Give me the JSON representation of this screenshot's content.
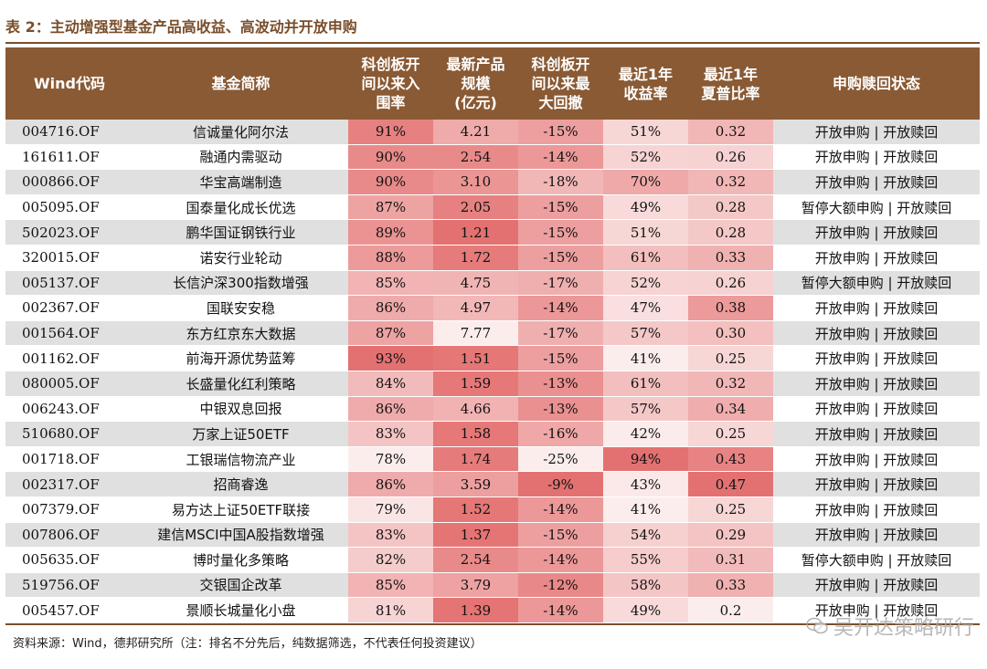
{
  "caption": "表 2：主动增强型基金产品高收益、高波动并开放申购",
  "headers": [
    [
      "Wind代码"
    ],
    [
      "基金简称"
    ],
    [
      "科创板开",
      "间以来入",
      "围率"
    ],
    [
      "最新产品",
      "规模",
      "(亿元)"
    ],
    [
      "科创板开",
      "间以来最",
      "大回撤"
    ],
    [
      "最近1年",
      "收益率"
    ],
    [
      "最近1年",
      "夏普比率"
    ],
    [
      "申购赎回状态"
    ]
  ],
  "colors": {
    "header_bg": "#8a5a34",
    "accent": "#7a4e2a",
    "heat_low": "#fdf4f4",
    "heat_high": "#e36a6a"
  },
  "rows": [
    {
      "code": "004716.OF",
      "name": "信诚量化阿尔法",
      "hit": "91%",
      "size": "4.21",
      "dd": "-15%",
      "ret": "51%",
      "sharpe": "0.32",
      "status": "开放申购 | 开放赎回"
    },
    {
      "code": "161611.OF",
      "name": "融通内需驱动",
      "hit": "90%",
      "size": "2.54",
      "dd": "-14%",
      "ret": "52%",
      "sharpe": "0.26",
      "status": "开放申购 | 开放赎回"
    },
    {
      "code": "000866.OF",
      "name": "华宝高端制造",
      "hit": "90%",
      "size": "3.10",
      "dd": "-18%",
      "ret": "70%",
      "sharpe": "0.32",
      "status": "开放申购 | 开放赎回"
    },
    {
      "code": "005095.OF",
      "name": "国泰量化成长优选",
      "hit": "87%",
      "size": "2.05",
      "dd": "-15%",
      "ret": "49%",
      "sharpe": "0.28",
      "status": "暂停大额申购 | 开放赎回"
    },
    {
      "code": "502023.OF",
      "name": "鹏华国证钢铁行业",
      "hit": "89%",
      "size": "1.21",
      "dd": "-15%",
      "ret": "51%",
      "sharpe": "0.28",
      "status": "开放申购 | 开放赎回"
    },
    {
      "code": "320015.OF",
      "name": "诺安行业轮动",
      "hit": "88%",
      "size": "1.72",
      "dd": "-15%",
      "ret": "61%",
      "sharpe": "0.33",
      "status": "开放申购 | 开放赎回"
    },
    {
      "code": "005137.OF",
      "name": "长信沪深300指数增强",
      "hit": "85%",
      "size": "4.75",
      "dd": "-17%",
      "ret": "52%",
      "sharpe": "0.26",
      "status": "暂停大额申购 | 开放赎回"
    },
    {
      "code": "002367.OF",
      "name": "国联安安稳",
      "hit": "86%",
      "size": "4.97",
      "dd": "-14%",
      "ret": "47%",
      "sharpe": "0.38",
      "status": "开放申购 | 开放赎回"
    },
    {
      "code": "001564.OF",
      "name": "东方红京东大数据",
      "hit": "87%",
      "size": "7.77",
      "dd": "-17%",
      "ret": "57%",
      "sharpe": "0.30",
      "status": "开放申购 | 开放赎回"
    },
    {
      "code": "001162.OF",
      "name": "前海开源优势蓝筹",
      "hit": "93%",
      "size": "1.51",
      "dd": "-15%",
      "ret": "41%",
      "sharpe": "0.25",
      "status": "开放申购 | 开放赎回"
    },
    {
      "code": "080005.OF",
      "name": "长盛量化红利策略",
      "hit": "84%",
      "size": "1.59",
      "dd": "-13%",
      "ret": "61%",
      "sharpe": "0.32",
      "status": "开放申购 | 开放赎回"
    },
    {
      "code": "006243.OF",
      "name": "中银双息回报",
      "hit": "86%",
      "size": "4.66",
      "dd": "-13%",
      "ret": "57%",
      "sharpe": "0.34",
      "status": "开放申购 | 开放赎回"
    },
    {
      "code": "510680.OF",
      "name": "万家上证50ETF",
      "hit": "83%",
      "size": "1.58",
      "dd": "-16%",
      "ret": "42%",
      "sharpe": "0.25",
      "status": "开放申购 | 开放赎回"
    },
    {
      "code": "001718.OF",
      "name": "工银瑞信物流产业",
      "hit": "78%",
      "size": "1.74",
      "dd": "-25%",
      "ret": "94%",
      "sharpe": "0.43",
      "status": "开放申购 | 开放赎回"
    },
    {
      "code": "002317.OF",
      "name": "招商睿逸",
      "hit": "86%",
      "size": "3.59",
      "dd": "-9%",
      "ret": "43%",
      "sharpe": "0.47",
      "status": "开放申购 | 开放赎回"
    },
    {
      "code": "007379.OF",
      "name": "易方达上证50ETF联接",
      "hit": "79%",
      "size": "1.52",
      "dd": "-14%",
      "ret": "41%",
      "sharpe": "0.25",
      "status": "开放申购 | 开放赎回"
    },
    {
      "code": "007806.OF",
      "name": "建信MSCI中国A股指数增强",
      "hit": "83%",
      "size": "1.37",
      "dd": "-15%",
      "ret": "54%",
      "sharpe": "0.29",
      "status": "开放申购 | 开放赎回"
    },
    {
      "code": "005635.OF",
      "name": "博时量化多策略",
      "hit": "82%",
      "size": "2.54",
      "dd": "-14%",
      "ret": "55%",
      "sharpe": "0.31",
      "status": "暂停大额申购 | 开放赎回"
    },
    {
      "code": "519756.OF",
      "name": "交银国企改革",
      "hit": "85%",
      "size": "3.79",
      "dd": "-12%",
      "ret": "58%",
      "sharpe": "0.33",
      "status": "开放申购 | 开放赎回"
    },
    {
      "code": "005457.OF",
      "name": "景顺长城量化小盘",
      "hit": "81%",
      "size": "1.39",
      "dd": "-14%",
      "ret": "49%",
      "sharpe": "0.2",
      "status": "开放申购 | 开放赎回"
    }
  ],
  "source_note": "资料来源：Wind，德邦研究所（注：排名不分先后，纯数据筛选，不代表任何投资建议）",
  "watermark": {
    "text": "吴开达策略研行",
    "icon": "wechat-icon"
  }
}
